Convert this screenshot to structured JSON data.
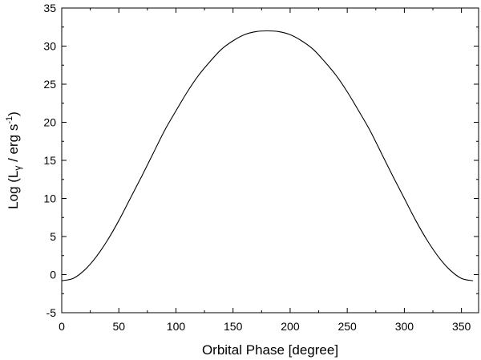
{
  "chart_data": {
    "type": "line",
    "title": "",
    "xlabel": "Orbital Phase [degree]",
    "ylabel": {
      "prefix": "Log (L",
      "subscript": "γ",
      "middle": " / erg s",
      "superscript": "-1",
      "suffix": ")"
    },
    "xlim": [
      0,
      365
    ],
    "ylim": [
      -5,
      35
    ],
    "x_ticks": [
      0,
      50,
      100,
      150,
      200,
      250,
      300,
      350
    ],
    "y_ticks": [
      -5,
      0,
      5,
      10,
      15,
      20,
      25,
      30,
      35
    ],
    "grid": false,
    "legend": "none",
    "line_color": "#000000",
    "series": [
      {
        "x": [
          0,
          10,
          20,
          30,
          40,
          50,
          60,
          70,
          80,
          90,
          100,
          110,
          120,
          130,
          140,
          150,
          160,
          170,
          180,
          190,
          200,
          210,
          220,
          230,
          240,
          250,
          260,
          270,
          280,
          290,
          300,
          310,
          320,
          330,
          340,
          350,
          360
        ],
        "y": [
          -0.8,
          -0.5,
          0.6,
          2.3,
          4.5,
          7.1,
          10.0,
          12.9,
          15.9,
          18.9,
          21.5,
          24.0,
          26.2,
          28.0,
          29.6,
          30.7,
          31.5,
          31.9,
          32.0,
          31.9,
          31.5,
          30.7,
          29.6,
          28.0,
          26.2,
          24.0,
          21.5,
          18.9,
          15.9,
          12.9,
          10.0,
          7.1,
          4.5,
          2.3,
          0.6,
          -0.5,
          -0.8
        ]
      }
    ]
  }
}
